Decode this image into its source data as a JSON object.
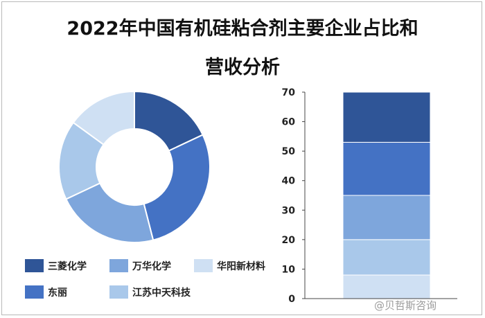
{
  "title_line1": "2022年中国有机硅粘合剂主要企业占比和",
  "title_line2": "营收分析",
  "watermark": "@贝哲斯咨询",
  "colors": {
    "三菱化学": "#2f5597",
    "东丽": "#4472c4",
    "万华化学": "#7ea6dc",
    "江苏中天科技": "#a9c8ea",
    "华阳新材料": "#cfe0f3"
  },
  "chart_data": [
    {
      "type": "pie",
      "style": "donut",
      "slices": [
        {
          "name": "三菱化学",
          "value": 18
        },
        {
          "name": "东丽",
          "value": 28
        },
        {
          "name": "万华化学",
          "value": 22
        },
        {
          "name": "江苏中天科技",
          "value": 17
        },
        {
          "name": "华阳新材料",
          "value": 15
        }
      ],
      "legend": {
        "placement": "bottom",
        "entries": [
          "三菱化学",
          "万华化学",
          "华阳新材料",
          "东丽",
          "江苏中天科技"
        ]
      }
    },
    {
      "type": "bar",
      "stacked": true,
      "ylim": [
        0,
        70
      ],
      "yticks": [
        "0",
        "10",
        "20",
        "30",
        "40",
        "50",
        "60",
        "70"
      ],
      "grid": false,
      "segments": [
        {
          "name": "华阳新材料",
          "value": 8
        },
        {
          "name": "江苏中天科技",
          "value": 12
        },
        {
          "name": "万华化学",
          "value": 15
        },
        {
          "name": "东丽",
          "value": 18
        },
        {
          "name": "三菱化学",
          "value": 17
        }
      ]
    }
  ]
}
